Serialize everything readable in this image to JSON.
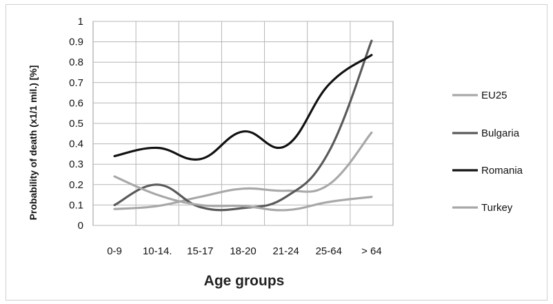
{
  "chart_data": {
    "type": "line",
    "title": "",
    "xlabel": "Age groups",
    "ylabel": "Probability of death (x1/1 mil.) [%]",
    "categories": [
      "0-9",
      "10-14.",
      "15-17",
      "18-20",
      "21-24",
      "25-64",
      "> 64"
    ],
    "yticks": [
      "0",
      "0.1",
      "0.2",
      "0.3",
      "0.4",
      "0.5",
      "0.6",
      "0.7",
      "0.8",
      "0.9",
      "1"
    ],
    "ylim": [
      0,
      1
    ],
    "grid": true,
    "legend_position": "right",
    "series": [
      {
        "name": "EU25",
        "color": "#a8a8a8",
        "values": [
          0.08,
          0.095,
          0.14,
          0.18,
          0.17,
          0.2,
          0.455
        ]
      },
      {
        "name": "Bulgaria",
        "color": "#5a5a5a",
        "values": [
          0.1,
          0.2,
          0.09,
          0.085,
          0.14,
          0.36,
          0.905
        ]
      },
      {
        "name": "Romania",
        "color": "#111111",
        "values": [
          0.34,
          0.38,
          0.325,
          0.46,
          0.39,
          0.69,
          0.835
        ]
      },
      {
        "name": "Turkey",
        "color": "#a8a8a8",
        "values": [
          0.24,
          0.15,
          0.1,
          0.095,
          0.075,
          0.115,
          0.14
        ]
      }
    ]
  }
}
